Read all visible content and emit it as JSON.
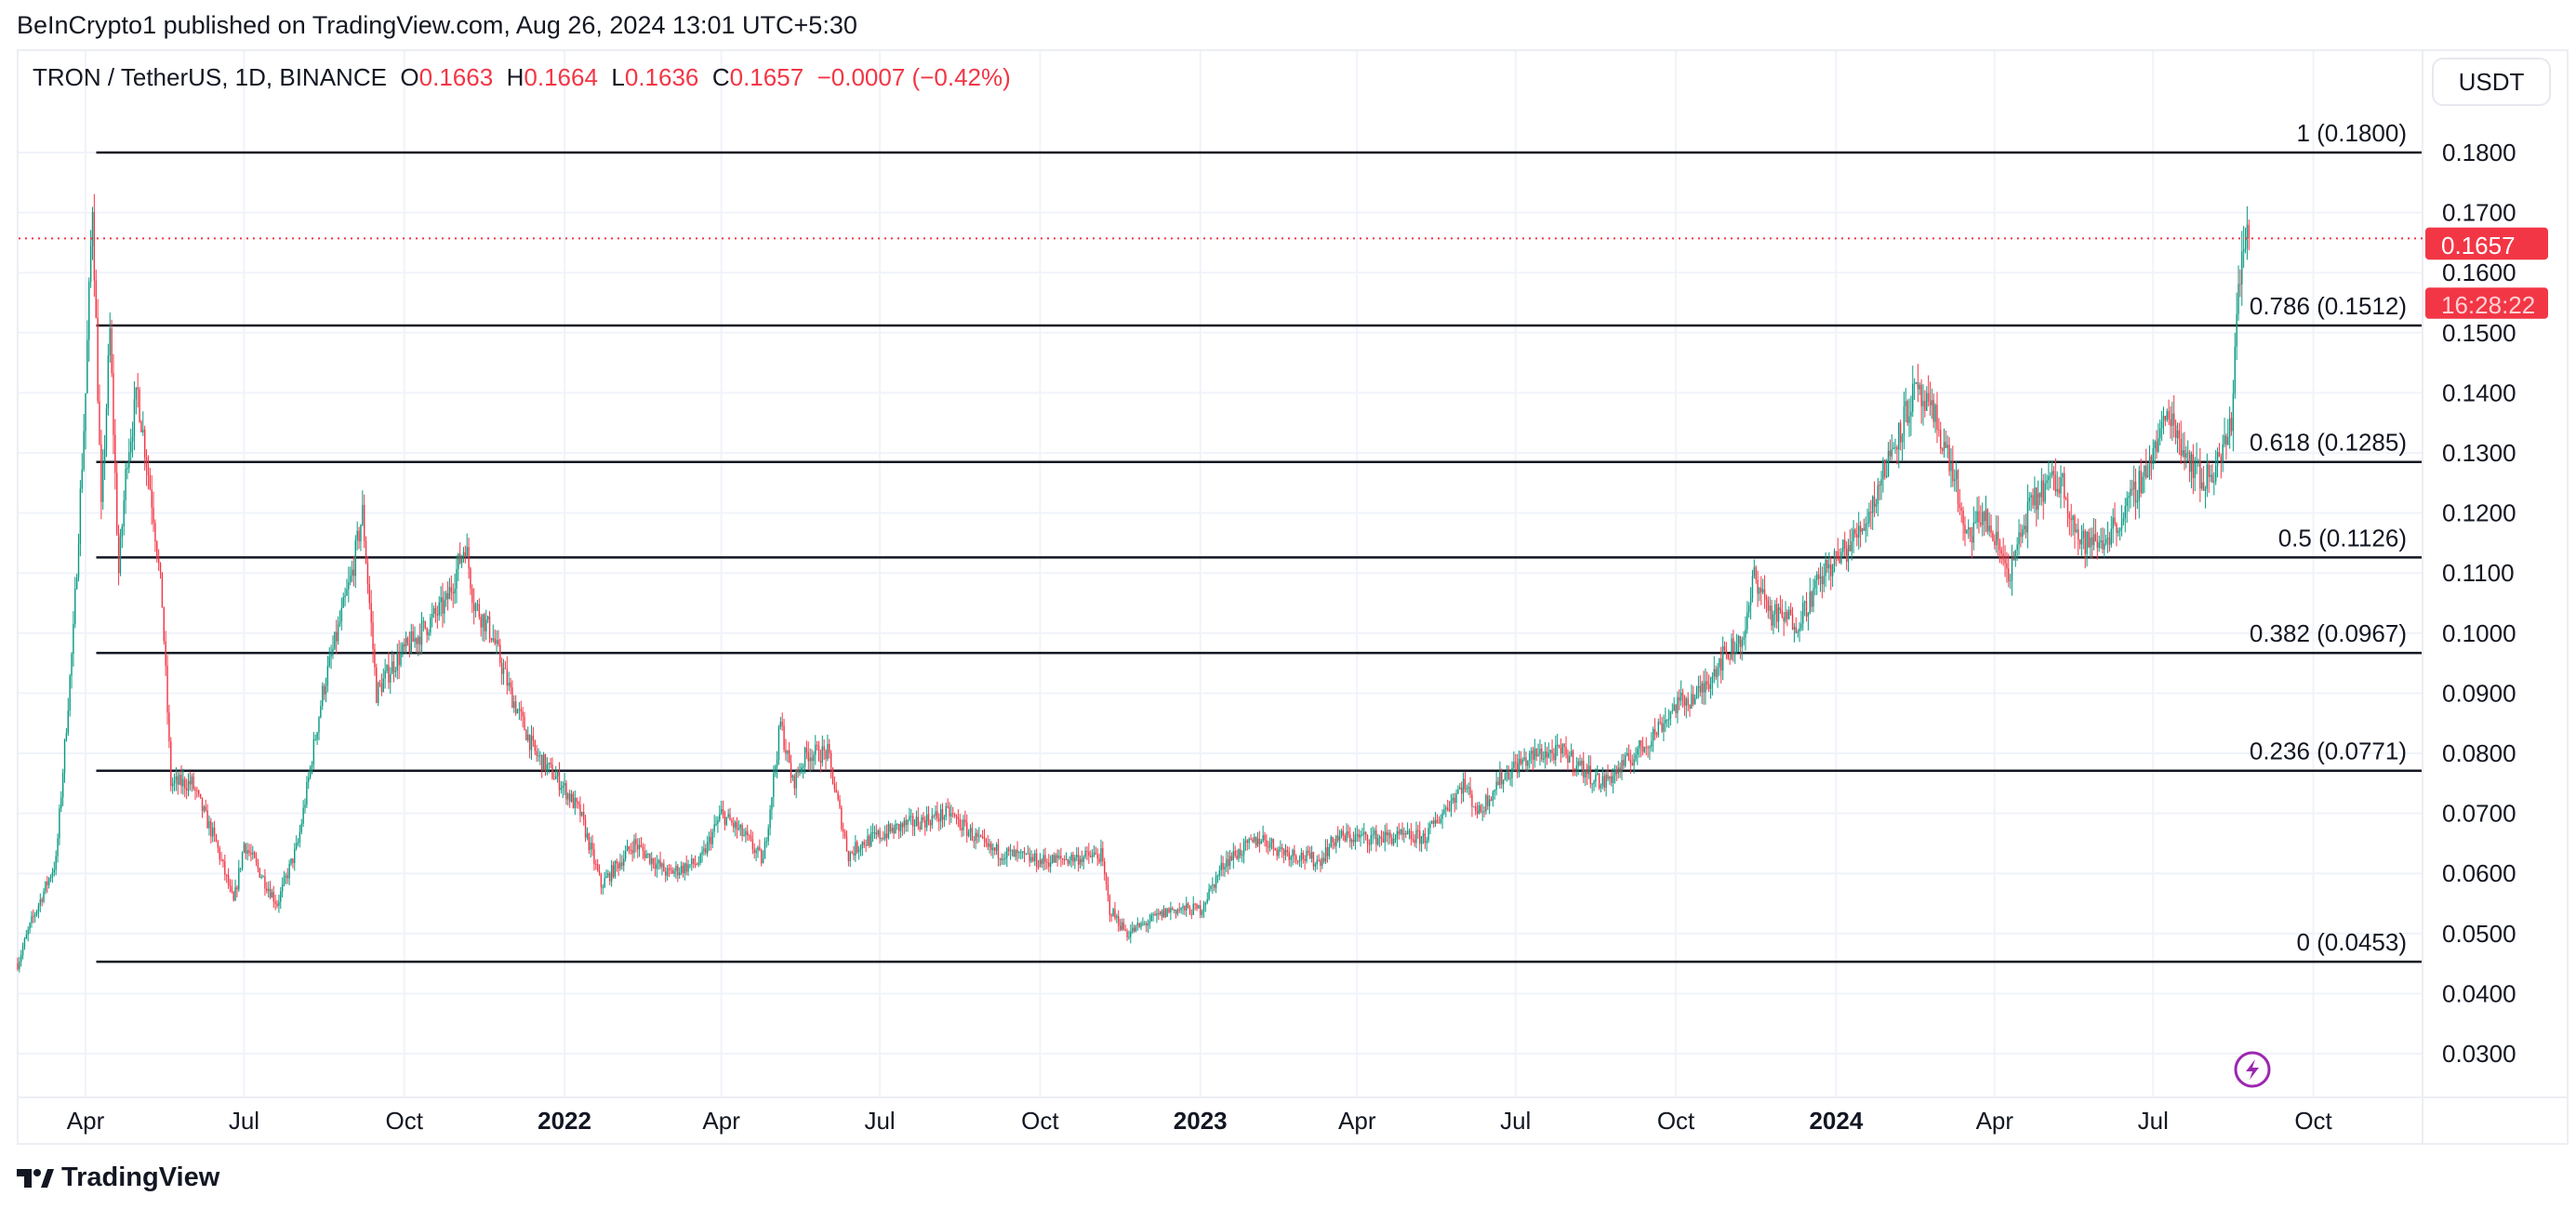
{
  "header": {
    "published": "BeInCrypto1 published on TradingView.com, Aug 26, 2024 13:01 UTC+5:30",
    "symbol": "TRON / TetherUS, 1D, BINANCE",
    "o_label": "O",
    "o": "0.1663",
    "h_label": "H",
    "h": "0.1664",
    "l_label": "L",
    "l": "0.1636",
    "c_label": "C",
    "c": "0.1657",
    "change": "−0.0007 (−0.42%)"
  },
  "currency_button": "USDT",
  "last_price": {
    "price": "0.1657",
    "countdown": "16:28:22"
  },
  "footer": {
    "brand": "TradingView"
  },
  "colors": {
    "up": "#089981",
    "down": "#f23645",
    "fib_line": "#131722",
    "grid": "#f0f3fa",
    "alert_icon": "#9c27b0"
  },
  "icons": [
    "lightning-alert-icon",
    "tradingview-logo-icon"
  ],
  "chart_data": {
    "type": "candlestick",
    "interval": "1D",
    "ylim": [
      0.025,
      0.185
    ],
    "y_ticks": [
      "0.0300",
      "0.0400",
      "0.0500",
      "0.0600",
      "0.0700",
      "0.0800",
      "0.0900",
      "0.1000",
      "0.1100",
      "0.1200",
      "0.1300",
      "0.1400",
      "0.1500",
      "0.1600",
      "0.1700",
      "0.1800"
    ],
    "x_ticks": [
      {
        "date": "2021-04-01",
        "label": "Apr",
        "major": false
      },
      {
        "date": "2021-07-01",
        "label": "Jul",
        "major": false
      },
      {
        "date": "2021-10-01",
        "label": "Oct",
        "major": false
      },
      {
        "date": "2022-01-01",
        "label": "2022",
        "major": true
      },
      {
        "date": "2022-04-01",
        "label": "Apr",
        "major": false
      },
      {
        "date": "2022-07-01",
        "label": "Jul",
        "major": false
      },
      {
        "date": "2022-10-01",
        "label": "Oct",
        "major": false
      },
      {
        "date": "2023-01-01",
        "label": "2023",
        "major": true
      },
      {
        "date": "2023-04-01",
        "label": "Apr",
        "major": false
      },
      {
        "date": "2023-07-01",
        "label": "Jul",
        "major": false
      },
      {
        "date": "2023-10-01",
        "label": "Oct",
        "major": false
      },
      {
        "date": "2024-01-01",
        "label": "2024",
        "major": true
      },
      {
        "date": "2024-04-01",
        "label": "Apr",
        "major": false
      },
      {
        "date": "2024-07-01",
        "label": "Jul",
        "major": false
      },
      {
        "date": "2024-10-01",
        "label": "Oct",
        "major": false
      }
    ],
    "fib_levels": [
      {
        "ratio": "1",
        "price": 0.18,
        "label": "1 (0.1800)"
      },
      {
        "ratio": "0.786",
        "price": 0.1512,
        "label": "0.786 (0.1512)"
      },
      {
        "ratio": "0.618",
        "price": 0.1285,
        "label": "0.618 (0.1285)"
      },
      {
        "ratio": "0.5",
        "price": 0.1126,
        "label": "0.5 (0.1126)"
      },
      {
        "ratio": "0.382",
        "price": 0.0967,
        "label": "0.382 (0.0967)"
      },
      {
        "ratio": "0.236",
        "price": 0.0771,
        "label": "0.236 (0.0771)"
      },
      {
        "ratio": "0",
        "price": 0.0453,
        "label": "0 (0.0453)"
      }
    ],
    "fib_start_date": "2021-04-05",
    "last_close": 0.1657,
    "approx_close_path": [
      [
        "2021-02-21",
        0.045
      ],
      [
        "2021-03-01",
        0.052
      ],
      [
        "2021-03-15",
        0.062
      ],
      [
        "2021-03-25",
        0.1
      ],
      [
        "2021-04-01",
        0.14
      ],
      [
        "2021-04-05",
        0.172
      ],
      [
        "2021-04-10",
        0.12
      ],
      [
        "2021-04-15",
        0.15
      ],
      [
        "2021-04-20",
        0.11
      ],
      [
        "2021-04-25",
        0.13
      ],
      [
        "2021-05-01",
        0.14
      ],
      [
        "2021-05-10",
        0.12
      ],
      [
        "2021-05-15",
        0.105
      ],
      [
        "2021-05-20",
        0.075
      ],
      [
        "2021-06-01",
        0.075
      ],
      [
        "2021-06-15",
        0.065
      ],
      [
        "2021-06-25",
        0.055
      ],
      [
        "2021-07-01",
        0.065
      ],
      [
        "2021-07-20",
        0.055
      ],
      [
        "2021-08-01",
        0.065
      ],
      [
        "2021-08-15",
        0.09
      ],
      [
        "2021-09-01",
        0.11
      ],
      [
        "2021-09-07",
        0.12
      ],
      [
        "2021-09-15",
        0.09
      ],
      [
        "2021-09-25",
        0.095
      ],
      [
        "2021-10-10",
        0.1
      ],
      [
        "2021-10-25",
        0.105
      ],
      [
        "2021-11-05",
        0.115
      ],
      [
        "2021-11-10",
        0.105
      ],
      [
        "2021-11-20",
        0.1
      ],
      [
        "2021-12-01",
        0.09
      ],
      [
        "2021-12-15",
        0.08
      ],
      [
        "2021-12-30",
        0.075
      ],
      [
        "2022-01-10",
        0.07
      ],
      [
        "2022-01-22",
        0.058
      ],
      [
        "2022-02-10",
        0.065
      ],
      [
        "2022-03-01",
        0.06
      ],
      [
        "2022-03-20",
        0.062
      ],
      [
        "2022-04-01",
        0.07
      ],
      [
        "2022-04-15",
        0.066
      ],
      [
        "2022-04-25",
        0.062
      ],
      [
        "2022-05-05",
        0.085
      ],
      [
        "2022-05-12",
        0.075
      ],
      [
        "2022-05-20",
        0.08
      ],
      [
        "2022-06-01",
        0.08
      ],
      [
        "2022-06-13",
        0.063
      ],
      [
        "2022-06-20",
        0.065
      ],
      [
        "2022-07-15",
        0.068
      ],
      [
        "2022-08-10",
        0.07
      ],
      [
        "2022-09-01",
        0.064
      ],
      [
        "2022-10-01",
        0.062
      ],
      [
        "2022-11-05",
        0.063
      ],
      [
        "2022-11-10",
        0.054
      ],
      [
        "2022-11-20",
        0.05
      ],
      [
        "2022-12-15",
        0.054
      ],
      [
        "2023-01-01",
        0.054
      ],
      [
        "2023-01-15",
        0.062
      ],
      [
        "2023-02-05",
        0.066
      ],
      [
        "2023-02-15",
        0.064
      ],
      [
        "2023-03-10",
        0.062
      ],
      [
        "2023-03-20",
        0.066
      ],
      [
        "2023-04-15",
        0.066
      ],
      [
        "2023-05-10",
        0.066
      ],
      [
        "2023-06-01",
        0.075
      ],
      [
        "2023-06-10",
        0.07
      ],
      [
        "2023-06-20",
        0.075
      ],
      [
        "2023-07-01",
        0.078
      ],
      [
        "2023-07-15",
        0.08
      ],
      [
        "2023-07-30",
        0.08
      ],
      [
        "2023-08-10",
        0.077
      ],
      [
        "2023-08-20",
        0.075
      ],
      [
        "2023-09-01",
        0.078
      ],
      [
        "2023-09-15",
        0.082
      ],
      [
        "2023-10-01",
        0.088
      ],
      [
        "2023-10-15",
        0.09
      ],
      [
        "2023-10-25",
        0.095
      ],
      [
        "2023-11-10",
        0.1
      ],
      [
        "2023-11-15",
        0.11
      ],
      [
        "2023-11-25",
        0.103
      ],
      [
        "2023-12-10",
        0.102
      ],
      [
        "2023-12-25",
        0.11
      ],
      [
        "2024-01-10",
        0.115
      ],
      [
        "2024-01-20",
        0.12
      ],
      [
        "2024-02-01",
        0.13
      ],
      [
        "2024-02-15",
        0.14
      ],
      [
        "2024-02-28",
        0.135
      ],
      [
        "2024-03-10",
        0.125
      ],
      [
        "2024-03-15",
        0.115
      ],
      [
        "2024-03-25",
        0.12
      ],
      [
        "2024-04-10",
        0.11
      ],
      [
        "2024-04-20",
        0.12
      ],
      [
        "2024-05-01",
        0.125
      ],
      [
        "2024-05-10",
        0.125
      ],
      [
        "2024-05-20",
        0.115
      ],
      [
        "2024-06-01",
        0.115
      ],
      [
        "2024-06-15",
        0.12
      ],
      [
        "2024-07-01",
        0.13
      ],
      [
        "2024-07-10",
        0.137
      ],
      [
        "2024-07-20",
        0.13
      ],
      [
        "2024-07-30",
        0.125
      ],
      [
        "2024-08-10",
        0.13
      ],
      [
        "2024-08-15",
        0.135
      ],
      [
        "2024-08-18",
        0.155
      ],
      [
        "2024-08-22",
        0.165
      ],
      [
        "2024-08-26",
        0.1657
      ]
    ]
  }
}
